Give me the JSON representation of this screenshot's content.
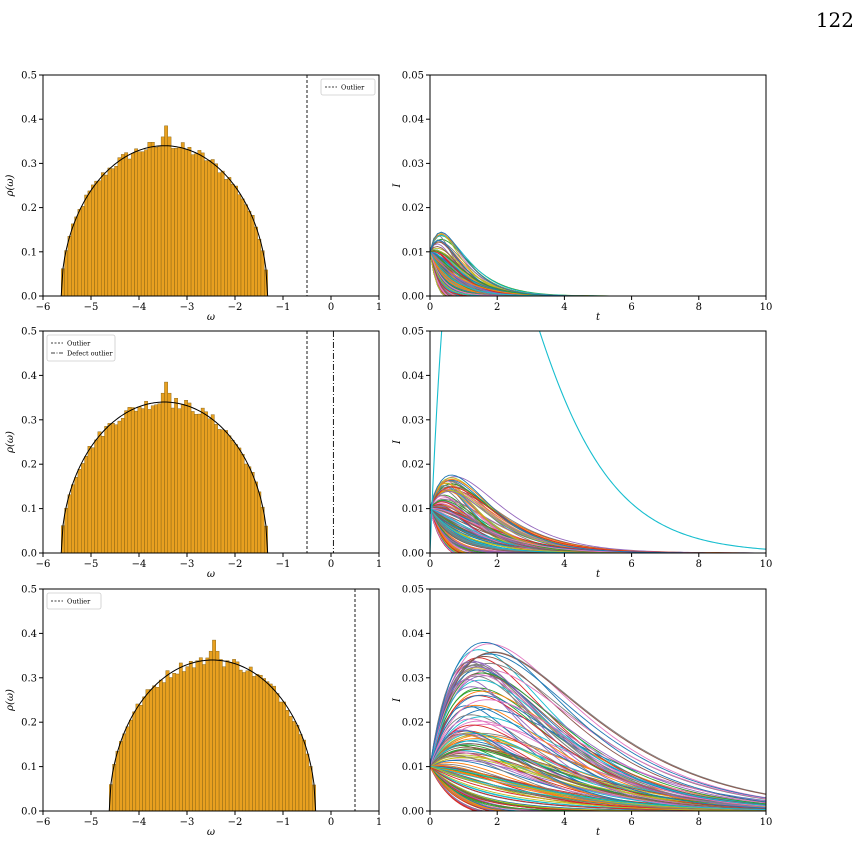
{
  "page_number": "122",
  "colors": {
    "hist_fill": "#e8a020",
    "hist_edge": "#7a5a10",
    "semicircle": "#000000",
    "line_palette": [
      "#1f77b4",
      "#ff7f0e",
      "#2ca02c",
      "#d62728",
      "#9467bd",
      "#8c564b",
      "#e377c2",
      "#7f7f7f",
      "#bcbd22",
      "#17becf"
    ]
  },
  "chart_data": [
    {
      "id": "hist-1",
      "type": "bar",
      "xlabel": "ω",
      "ylabel": "ρ(ω)",
      "xlim": [
        -6,
        1
      ],
      "ylim": [
        0,
        0.5
      ],
      "xticks": [
        "−6",
        "−5",
        "−4",
        "−3",
        "−2",
        "−1",
        "0",
        "1"
      ],
      "yticks": [
        "0.0",
        "0.1",
        "0.2",
        "0.3",
        "0.4",
        "0.5"
      ],
      "support": [
        -5.62,
        -1.32
      ],
      "peak": 0.34,
      "spike": {
        "x": -3.45,
        "y": 0.385
      },
      "vlines": [
        {
          "x": -0.5,
          "style": "dashed",
          "label": "Outlier"
        }
      ],
      "legend": {
        "placement": "top-right",
        "entries": [
          "Outlier"
        ]
      }
    },
    {
      "id": "curves-1",
      "type": "line",
      "xlabel": "t",
      "ylabel": "I",
      "xlim": [
        0,
        10
      ],
      "ylim": [
        0,
        0.05
      ],
      "xticks": [
        "0",
        "2",
        "4",
        "6",
        "8",
        "10"
      ],
      "yticks": [
        "0.00",
        "0.01",
        "0.02",
        "0.03",
        "0.04",
        "0.05"
      ],
      "start": 0.01,
      "max_peak": 0.0152,
      "peak_t": 0.5,
      "decay_end": 8,
      "n_curves": 150
    },
    {
      "id": "hist-2",
      "type": "bar",
      "xlabel": "ω",
      "ylabel": "ρ(ω)",
      "xlim": [
        -6,
        1
      ],
      "ylim": [
        0,
        0.5
      ],
      "xticks": [
        "−6",
        "−5",
        "−4",
        "−3",
        "−2",
        "−1",
        "0",
        "1"
      ],
      "yticks": [
        "0.0",
        "0.1",
        "0.2",
        "0.3",
        "0.4",
        "0.5"
      ],
      "support": [
        -5.62,
        -1.32
      ],
      "peak": 0.34,
      "spike": {
        "x": -3.45,
        "y": 0.385
      },
      "vlines": [
        {
          "x": -0.5,
          "style": "dashed",
          "label": "Outlier"
        },
        {
          "x": 0.05,
          "style": "dashdot",
          "label": "Defect outlier"
        }
      ],
      "legend": {
        "placement": "top-left",
        "entries": [
          "Outlier",
          "Defect outlier"
        ]
      }
    },
    {
      "id": "curves-2",
      "type": "line",
      "xlabel": "t",
      "ylabel": "I",
      "xlim": [
        0,
        10
      ],
      "ylim": [
        0,
        0.05
      ],
      "xticks": [
        "0",
        "2",
        "4",
        "6",
        "8",
        "10"
      ],
      "yticks": [
        "0.00",
        "0.01",
        "0.02",
        "0.03",
        "0.04",
        "0.05"
      ],
      "start": 0.01,
      "max_peak": 0.0185,
      "peak_t": 0.85,
      "decay_end": 8,
      "n_curves": 150,
      "outlier_curve": {
        "peak_t": 1.3,
        "peak": 0.09
      }
    },
    {
      "id": "hist-3",
      "type": "bar",
      "xlabel": "ω",
      "ylabel": "ρ(ω)",
      "xlim": [
        -6,
        1
      ],
      "ylim": [
        0,
        0.5
      ],
      "xticks": [
        "−6",
        "−5",
        "−4",
        "−3",
        "−2",
        "−1",
        "0",
        "1"
      ],
      "yticks": [
        "0.0",
        "0.1",
        "0.2",
        "0.3",
        "0.4",
        "0.5"
      ],
      "support": [
        -4.62,
        -0.32
      ],
      "peak": 0.34,
      "spike": {
        "x": -2.45,
        "y": 0.385
      },
      "vlines": [
        {
          "x": 0.5,
          "style": "dashed",
          "label": "Outlier"
        }
      ],
      "legend": {
        "placement": "top-left",
        "entries": [
          "Outlier"
        ]
      }
    },
    {
      "id": "curves-3",
      "type": "line",
      "xlabel": "t",
      "ylabel": "I",
      "xlim": [
        0,
        10
      ],
      "ylim": [
        0,
        0.05
      ],
      "xticks": [
        "0",
        "2",
        "4",
        "6",
        "8",
        "10"
      ],
      "yticks": [
        "0.00",
        "0.01",
        "0.02",
        "0.03",
        "0.04",
        "0.05"
      ],
      "start": 0.01,
      "max_peak": 0.0392,
      "peak_t": 1.8,
      "decay_end": 10,
      "n_curves": 160
    }
  ]
}
